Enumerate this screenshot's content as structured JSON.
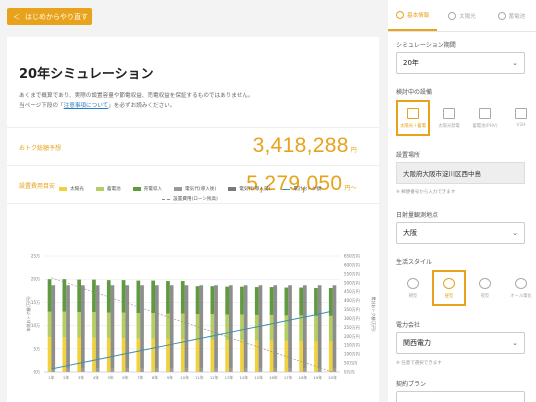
{
  "back_button": {
    "label": "はじめからやり直す"
  },
  "title": "20年シミュレーション",
  "description": {
    "line1": "あくまで概算であり、実際の設置容量や節電収益、売電収益を保証するものではありません。",
    "line2_prefix": "当ページ下段の「",
    "line2_link": "注意事項について",
    "line2_suffix": "」を必ずお読みください。"
  },
  "results": {
    "saving_label": "おトク総額予想",
    "saving_value": "3,418,288",
    "saving_unit": "円",
    "cost_label": "設置費用目安",
    "cost_value": "5,279,050",
    "cost_unit": "円〜"
  },
  "legend": {
    "solar": "太陽光",
    "battery": "蓄電池",
    "sale": "売電収入",
    "elec_solar": "電気代(導入後)",
    "elec_before": "電気代(導入前)",
    "cumulative": "累計おトク額",
    "loan": "設置費用(ローン残高)"
  },
  "colors": {
    "accent": "#e8a21b",
    "solar": "#f0d23c",
    "battery": "#b4cf5f",
    "sale": "#5f9a3e",
    "elec_after": "#9a9a9a",
    "elec_before": "#7a7a7a",
    "cumulative": "#3b8fb0"
  },
  "chart_data": {
    "type": "bar",
    "categories": [
      "1年",
      "2年",
      "3年",
      "4年",
      "5年",
      "6年",
      "7年",
      "8年",
      "9年",
      "10年",
      "11年",
      "12年",
      "13年",
      "14年",
      "15年",
      "16年",
      "17年",
      "18年",
      "19年",
      "20年"
    ],
    "y_left_ticks": [
      "0万",
      "5万",
      "10万",
      "15万",
      "20万",
      "25万"
    ],
    "y_right_ticks": [
      "0万円",
      "50万円",
      "100万円",
      "150万円",
      "200万円",
      "250万円",
      "300万円",
      "350万円",
      "400万円",
      "450万円",
      "500万円",
      "550万円",
      "600万円",
      "650万円"
    ],
    "y_left_label": "年間おトク額(万円)",
    "y_right_label": "累計おトク額(万円)",
    "ylim_left": [
      0,
      25
    ],
    "ylim_right": [
      0,
      650
    ],
    "series": [
      {
        "name": "太陽光",
        "values": [
          7.5,
          7.5,
          7.4,
          7.4,
          7.3,
          7.3,
          7.2,
          7.2,
          7.1,
          7.1,
          7.0,
          7.0,
          6.9,
          6.9,
          6.8,
          6.8,
          6.7,
          6.7,
          6.6,
          6.6
        ]
      },
      {
        "name": "蓄電池",
        "values": [
          5.5,
          5.5,
          5.5,
          5.5,
          5.5,
          5.5,
          5.5,
          5.5,
          5.5,
          5.5,
          5.5,
          5.5,
          5.5,
          5.5,
          5.5,
          5.5,
          5.5,
          5.5,
          5.5,
          5.5
        ]
      },
      {
        "name": "売電収入",
        "values": [
          7,
          7,
          7,
          7,
          7,
          7,
          7,
          7,
          7,
          7,
          6,
          6,
          6,
          6,
          6,
          6,
          6,
          6,
          6,
          6
        ]
      },
      {
        "name": "電気代(導入後)",
        "values": [
          0.7,
          0.7,
          0.7,
          0.7,
          0.7,
          0.7,
          0.7,
          0.7,
          0.7,
          0.7,
          0.7,
          0.7,
          0.7,
          0.7,
          0.7,
          0.7,
          0.7,
          0.7,
          0.7,
          0.7
        ]
      },
      {
        "name": "電気代(導入前)",
        "values": [
          18,
          18,
          18,
          18,
          18,
          18,
          18,
          18,
          18,
          18,
          18,
          18,
          18,
          18,
          18,
          18,
          18,
          18,
          18,
          18
        ]
      },
      {
        "name": "累計おトク額",
        "values": [
          17,
          34,
          51,
          68,
          85,
          102,
          119,
          136,
          153,
          170,
          187,
          204,
          221,
          238,
          255,
          272,
          289,
          306,
          323,
          342
        ]
      },
      {
        "name": "設置費用(ローン残高)",
        "values": [
          528,
          500,
          472,
          445,
          417,
          389,
          361,
          333,
          305,
          278,
          250,
          222,
          194,
          166,
          139,
          111,
          83,
          55,
          28,
          0
        ]
      }
    ]
  },
  "side": {
    "tabs": [
      "基本情報",
      "太陽光",
      "蓄電池"
    ],
    "period_label": "シミュレーション期間",
    "period_value": "20年",
    "equipment_label": "検討中の設備",
    "equipment_options": [
      "太陽光＋蓄電",
      "太陽光発電",
      "蓄電池(PHV)",
      "V2H"
    ],
    "location_label": "設置場所",
    "location_value": "大阪府大阪市淀川区西中島",
    "location_note": "※ 郵便番号から入力できます",
    "sunshine_label": "日射量観測地点",
    "sunshine_value": "大阪",
    "lifestyle_label": "生活スタイル",
    "lifestyle_options": [
      "朝型",
      "昼型",
      "夜型",
      "オール電化"
    ],
    "power_label": "電力会社",
    "power_value": "関西電力",
    "power_note": "※ 任意で選択できます",
    "plan_label": "契約プラン"
  }
}
